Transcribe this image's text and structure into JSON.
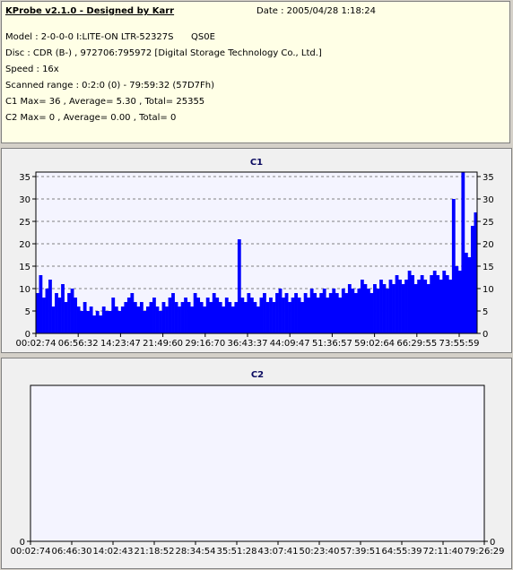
{
  "info": {
    "title": "KProbe v2.1.0 - Designed by Karr",
    "date": "Date : 2005/04/28 1:18:24",
    "model": "Model : 2-0-0-0 I:LITE-ON LTR-52327S",
    "model_code": "QS0E",
    "disc": "Disc : CDR (B-) , 972706:795972 [Digital Storage Technology Co., Ltd.]",
    "speed": "Speed : 16x",
    "range": "Scanned range : 0:2:0 (0) - 79:59:32 (57D7Fh)",
    "c1_stats": "C1 Max= 36 , Average= 5.30 , Total= 25355",
    "c2_stats": "C2 Max= 0 , Average= 0.00 , Total= 0"
  },
  "colors": {
    "bars": "#0000ff",
    "plot_bg": "#f4f4ff",
    "panel_bg": "#f0f0f0",
    "info_bg": "#ffffe6"
  },
  "chart_data": [
    {
      "type": "bar",
      "title": "C1",
      "ylim": [
        0,
        36
      ],
      "yticks": [
        "0",
        "5",
        "10",
        "15",
        "20",
        "25",
        "30",
        "35"
      ],
      "xticks": [
        "00:02:74",
        "06:56:32",
        "14:23:47",
        "21:49:60",
        "29:16:70",
        "36:43:37",
        "44:09:47",
        "51:36:57",
        "59:02:64",
        "66:29:55",
        "73:55:59"
      ],
      "grid": true,
      "values": [
        9,
        13,
        8,
        10,
        12,
        6,
        9,
        8,
        11,
        7,
        9,
        10,
        8,
        6,
        5,
        7,
        5,
        6,
        4,
        5,
        4,
        6,
        5,
        5,
        8,
        6,
        5,
        6,
        7,
        8,
        9,
        7,
        6,
        7,
        5,
        6,
        7,
        8,
        6,
        5,
        7,
        6,
        8,
        9,
        7,
        6,
        7,
        8,
        7,
        6,
        9,
        8,
        7,
        6,
        8,
        7,
        9,
        8,
        7,
        6,
        8,
        7,
        6,
        7,
        21,
        8,
        7,
        9,
        8,
        7,
        6,
        8,
        9,
        7,
        8,
        7,
        9,
        10,
        8,
        9,
        7,
        8,
        9,
        8,
        7,
        9,
        8,
        10,
        9,
        8,
        9,
        10,
        8,
        9,
        10,
        9,
        8,
        10,
        9,
        11,
        10,
        9,
        10,
        12,
        11,
        10,
        9,
        11,
        10,
        12,
        11,
        10,
        12,
        11,
        13,
        12,
        11,
        12,
        14,
        13,
        11,
        12,
        13,
        12,
        11,
        13,
        14,
        13,
        12,
        14,
        13,
        12,
        30,
        15,
        14,
        36,
        18,
        17,
        24,
        27
      ]
    },
    {
      "type": "bar",
      "title": "C2",
      "ylim": [
        0,
        1
      ],
      "yticks": [
        "0"
      ],
      "xticks": [
        "00:02:74",
        "06:46:30",
        "14:02:43",
        "21:18:52",
        "28:34:54",
        "35:51:28",
        "43:07:41",
        "50:23:40",
        "57:39:51",
        "64:55:39",
        "72:11:40",
        "79:26:29"
      ],
      "grid": true,
      "values": []
    }
  ]
}
